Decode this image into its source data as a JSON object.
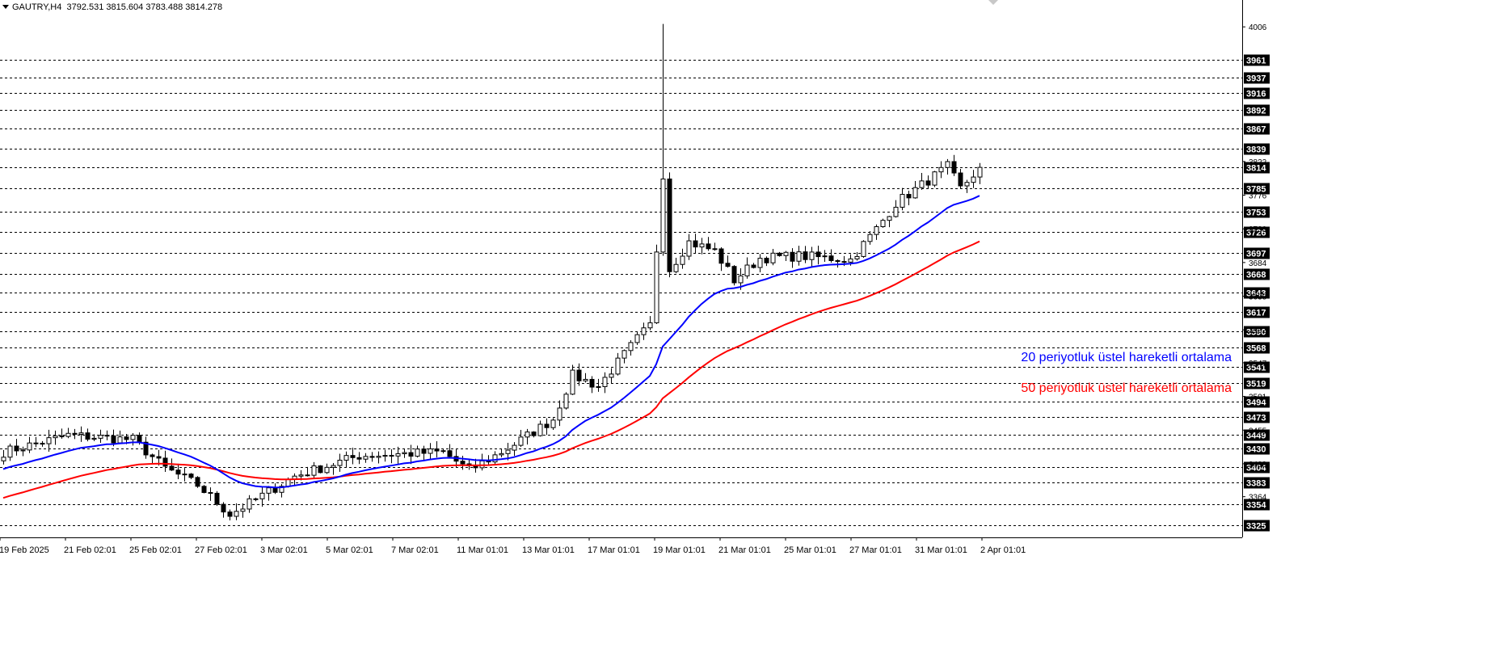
{
  "header": {
    "symbol": "GAUTRY,H4",
    "ohlc": "3792.531 3815.604 3783.488 3814.278"
  },
  "colors": {
    "ema20": "#0000ff",
    "ema50": "#ff0000",
    "candle": "#000000",
    "background": "#ffffff",
    "level_label_bg": "#000000"
  },
  "legend": {
    "ema20": "20 periyotluk üstel hareketli ortalama",
    "ema50": "50 periyotluk üstel hareketli ortalama"
  },
  "chart_data": {
    "type": "candlestick",
    "y_axis": {
      "range": [
        3310,
        4020
      ],
      "tick_labels": [
        "4006",
        "3822",
        "3776",
        "3730",
        "3684",
        "3638",
        "3592",
        "3547",
        "3501",
        "3455",
        "3409",
        "3364"
      ]
    },
    "x_axis": {
      "tick_labels": [
        "19 Feb 2025",
        "21 Feb 02:01",
        "25 Feb 02:01",
        "27 Feb 02:01",
        "3 Mar 02:01",
        "5 Mar 02:01",
        "7 Mar 02:01",
        "11 Mar 01:01",
        "13 Mar 01:01",
        "17 Mar 01:01",
        "19 Mar 01:01",
        "21 Mar 01:01",
        "25 Mar 01:01",
        "27 Mar 01:01",
        "31 Mar 01:01",
        "2 Apr 01:01"
      ]
    },
    "horizontal_levels": [
      "3961",
      "3937",
      "3916",
      "3892",
      "3867",
      "3839",
      "3814",
      "3785",
      "3753",
      "3726",
      "3697",
      "3668",
      "3643",
      "3617",
      "3590",
      "3568",
      "3541",
      "3519",
      "3494",
      "3473",
      "3449",
      "3430",
      "3404",
      "3383",
      "3354",
      "3325"
    ],
    "key_prices": [
      {
        "x": 0,
        "price": 3425
      },
      {
        "x": 10,
        "price": 3448
      },
      {
        "x": 20,
        "price": 3442
      },
      {
        "x": 25,
        "price": 3403
      },
      {
        "x": 30,
        "price": 3380
      },
      {
        "x": 35,
        "price": 3340
      },
      {
        "x": 38,
        "price": 3355
      },
      {
        "x": 45,
        "price": 3392
      },
      {
        "x": 55,
        "price": 3420
      },
      {
        "x": 68,
        "price": 3425
      },
      {
        "x": 72,
        "price": 3400
      },
      {
        "x": 78,
        "price": 3430
      },
      {
        "x": 85,
        "price": 3470
      },
      {
        "x": 88,
        "price": 3530
      },
      {
        "x": 92,
        "price": 3515
      },
      {
        "x": 98,
        "price": 3580
      },
      {
        "x": 100,
        "price": 3598
      },
      {
        "x": 102,
        "price": 3805
      },
      {
        "x": 103,
        "price": 3675
      },
      {
        "x": 106,
        "price": 3712
      },
      {
        "x": 110,
        "price": 3700
      },
      {
        "x": 113,
        "price": 3660
      },
      {
        "x": 117,
        "price": 3690
      },
      {
        "x": 123,
        "price": 3693
      },
      {
        "x": 131,
        "price": 3688
      },
      {
        "x": 135,
        "price": 3730
      },
      {
        "x": 138,
        "price": 3765
      },
      {
        "x": 142,
        "price": 3790
      },
      {
        "x": 146,
        "price": 3815
      },
      {
        "x": 148,
        "price": 3785
      },
      {
        "x": 151,
        "price": 3814
      }
    ],
    "spike": {
      "x": 102,
      "high": 4010
    },
    "candle_count": 152,
    "ema20_start": 3400,
    "ema50_start": 3360
  }
}
